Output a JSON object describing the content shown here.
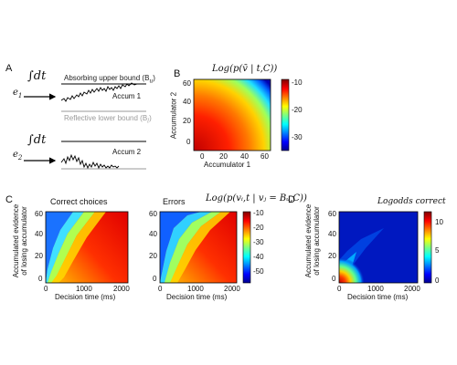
{
  "panels": {
    "A": {
      "label": "A",
      "integral": "∫dt",
      "input1": "e",
      "input1_sub": "1",
      "input2": "e",
      "input2_sub": "2",
      "upper_bound": "Absorbing upper bound (B",
      "upper_bound_sub": "u",
      "upper_bound_close": ")",
      "lower_bound": "Reflective lower bound (B",
      "lower_bound_sub": "l",
      "lower_bound_close": ")",
      "accum1": "Accum 1",
      "accum2": "Accum 2"
    },
    "B": {
      "label": "B",
      "title": "Log(p(v̄ | t,C))",
      "xlabel": "Accumulator 1",
      "ylabel": "Accumulator 2",
      "xticks": [
        "0",
        "20",
        "40",
        "60"
      ],
      "yticks": [
        "0",
        "20",
        "40",
        "60"
      ],
      "colorbar_ticks": [
        "-10",
        "-20",
        "-30"
      ]
    },
    "C": {
      "label": "C",
      "left_title": "Correct choices",
      "right_title": "Errors",
      "formula": "Log(p(vᵢ,t | vⱼ = Bᵤ,C))",
      "xlabel": "Decision time (ms)",
      "ylabel_line1": "Accumulated evidence",
      "ylabel_line2": "of losing accumulator",
      "xticks": [
        "0",
        "1000",
        "2000"
      ],
      "yticks": [
        "0",
        "20",
        "40",
        "60"
      ],
      "colorbar_ticks": [
        "-10",
        "-20",
        "-30",
        "-40",
        "-50"
      ]
    },
    "D": {
      "label": "D",
      "title": "Logodds correct",
      "xlabel": "Decision time (ms)",
      "ylabel_line1": "Accumulated evidence",
      "ylabel_line2": "of losing accumulator",
      "xticks": [
        "0",
        "1000",
        "2000"
      ],
      "yticks": [
        "0",
        "20",
        "40",
        "60"
      ],
      "colorbar_ticks": [
        "10",
        "5",
        "0"
      ]
    }
  },
  "colors": {
    "colormap": "jet",
    "line": "#000000",
    "lower_bound_line": "#9a9a9a"
  }
}
